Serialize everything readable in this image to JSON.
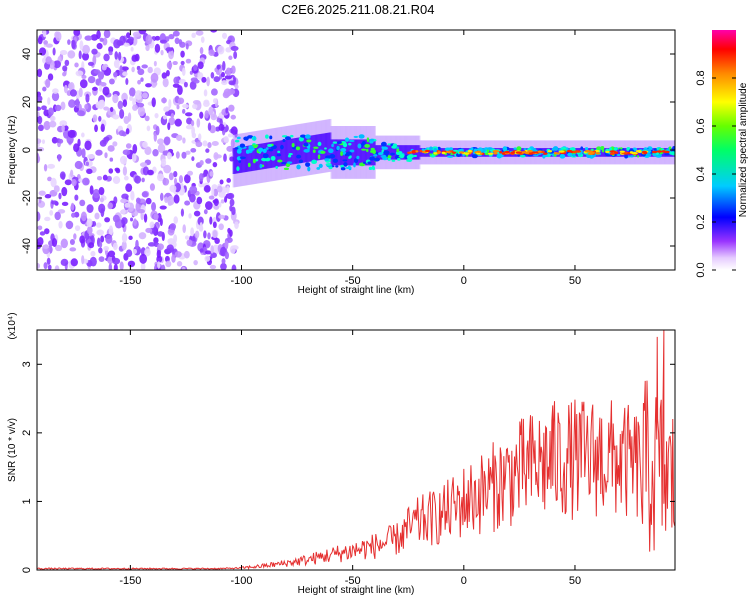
{
  "title": "C2E6.2025.211.08.21.R04",
  "chart_data": [
    {
      "type": "heatmap",
      "xlabel": "Height of straight line (km)",
      "ylabel": "Frequency (Hz)",
      "xlim": [
        -192,
        95
      ],
      "ylim": [
        -50,
        50
      ],
      "xticks": [
        -150,
        -100,
        -50,
        0,
        50
      ],
      "yticks": [
        -40,
        -20,
        0,
        20,
        40
      ],
      "noise_region_x": [
        -192,
        -102
      ],
      "ridge_frequency_hz": -1,
      "colorbar": {
        "label": "Normalized spectral amplitude",
        "range": [
          0,
          1
        ],
        "ticks": [
          "0.0",
          "0.2",
          "0.4",
          "0.6",
          "0.8"
        ],
        "colors": [
          "#ffffff",
          "#cc88ff",
          "#6600ff",
          "#0000ff",
          "#00ffff",
          "#00ff00",
          "#ffff00",
          "#ff8800",
          "#ff0000",
          "#ff00aa"
        ]
      }
    },
    {
      "type": "line",
      "xlabel": "Height of straight line (km)",
      "ylabel": "SNR (10 * v/v)",
      "yscale_label": "(x10⁴)",
      "xlim": [
        -192,
        95
      ],
      "ylim": [
        0,
        3.5
      ],
      "xticks": [
        -150,
        -100,
        -50,
        0,
        50
      ],
      "yticks": [
        0,
        1,
        2,
        3
      ],
      "line_color": "#e53030",
      "series": [
        {
          "x": [
            -192,
            -150,
            -110,
            -100,
            -90,
            -80,
            -70,
            -60,
            -50,
            -40,
            -30,
            -25,
            -20,
            -10,
            0,
            10,
            20,
            30,
            40,
            50,
            60,
            70,
            75,
            80,
            85,
            90,
            93,
            95
          ],
          "values": [
            0.02,
            0.02,
            0.02,
            0.03,
            0.06,
            0.1,
            0.15,
            0.22,
            0.28,
            0.35,
            0.45,
            0.6,
            0.7,
            0.8,
            1.0,
            1.15,
            1.35,
            1.5,
            1.6,
            1.62,
            1.65,
            1.6,
            1.55,
            1.5,
            1.45,
            1.4,
            1.3,
            1.3
          ]
        }
      ],
      "peaks": [
        {
          "x": 40,
          "y": 2.4
        },
        {
          "x": 87,
          "y": 3.4
        },
        {
          "x": 90,
          "y": 3.5
        }
      ]
    }
  ]
}
